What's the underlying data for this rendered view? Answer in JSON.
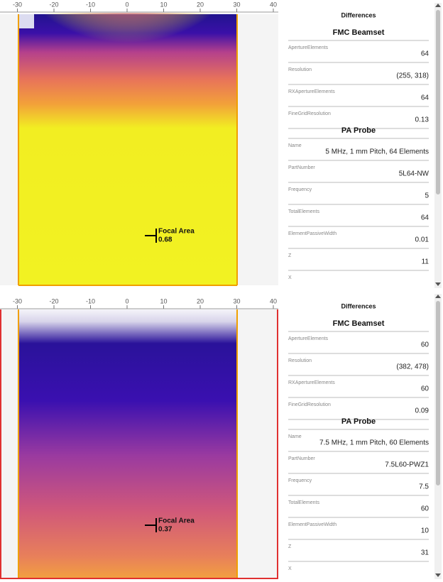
{
  "panels": [
    {
      "ruler": [
        -30,
        -20,
        -10,
        0,
        10,
        20,
        30,
        40
      ],
      "focal_area": {
        "label": "Focal Area",
        "value": "0.68"
      },
      "properties": {
        "title": "Differences",
        "sections": [
          {
            "title": "FMC Beamset",
            "rows": [
              {
                "label": "ApertureElements",
                "value": "64"
              },
              {
                "label": "Resolution",
                "value": "(255, 318)"
              },
              {
                "label": "RXApertureElements",
                "value": "64"
              },
              {
                "label": "FineGridResolution",
                "value": "0.13"
              }
            ]
          },
          {
            "title": "PA Probe",
            "rows": [
              {
                "label": "Name",
                "value": "5 MHz, 1 mm Pitch, 64 Elements"
              },
              {
                "label": "PartNumber",
                "value": "5L64-NW"
              },
              {
                "label": "Frequency",
                "value": "5"
              },
              {
                "label": "TotalElements",
                "value": "64"
              },
              {
                "label": "ElementPassiveWidth",
                "value": "0.01"
              },
              {
                "label": "Z",
                "value": "11"
              },
              {
                "label": "X"
              }
            ]
          }
        ]
      }
    },
    {
      "ruler": [
        -30,
        -20,
        -10,
        0,
        10,
        20,
        30,
        40
      ],
      "focal_area": {
        "label": "Focal Area",
        "value": "0.37"
      },
      "properties": {
        "title": "Differences",
        "sections": [
          {
            "title": "FMC Beamset",
            "rows": [
              {
                "label": "ApertureElements",
                "value": "60"
              },
              {
                "label": "Resolution",
                "value": "(382, 478)"
              },
              {
                "label": "RXApertureElements",
                "value": "60"
              },
              {
                "label": "FineGridResolution",
                "value": "0.09"
              }
            ]
          },
          {
            "title": "PA Probe",
            "rows": [
              {
                "label": "Name",
                "value": "7.5 MHz, 1 mm Pitch, 60 Elements"
              },
              {
                "label": "PartNumber",
                "value": "7.5L60-PWZ1"
              },
              {
                "label": "Frequency",
                "value": "7.5"
              },
              {
                "label": "TotalElements",
                "value": "60"
              },
              {
                "label": "ElementPassiveWidth",
                "value": "10"
              },
              {
                "label": "Z",
                "value": "31"
              },
              {
                "label": "X"
              }
            ]
          }
        ]
      }
    }
  ]
}
